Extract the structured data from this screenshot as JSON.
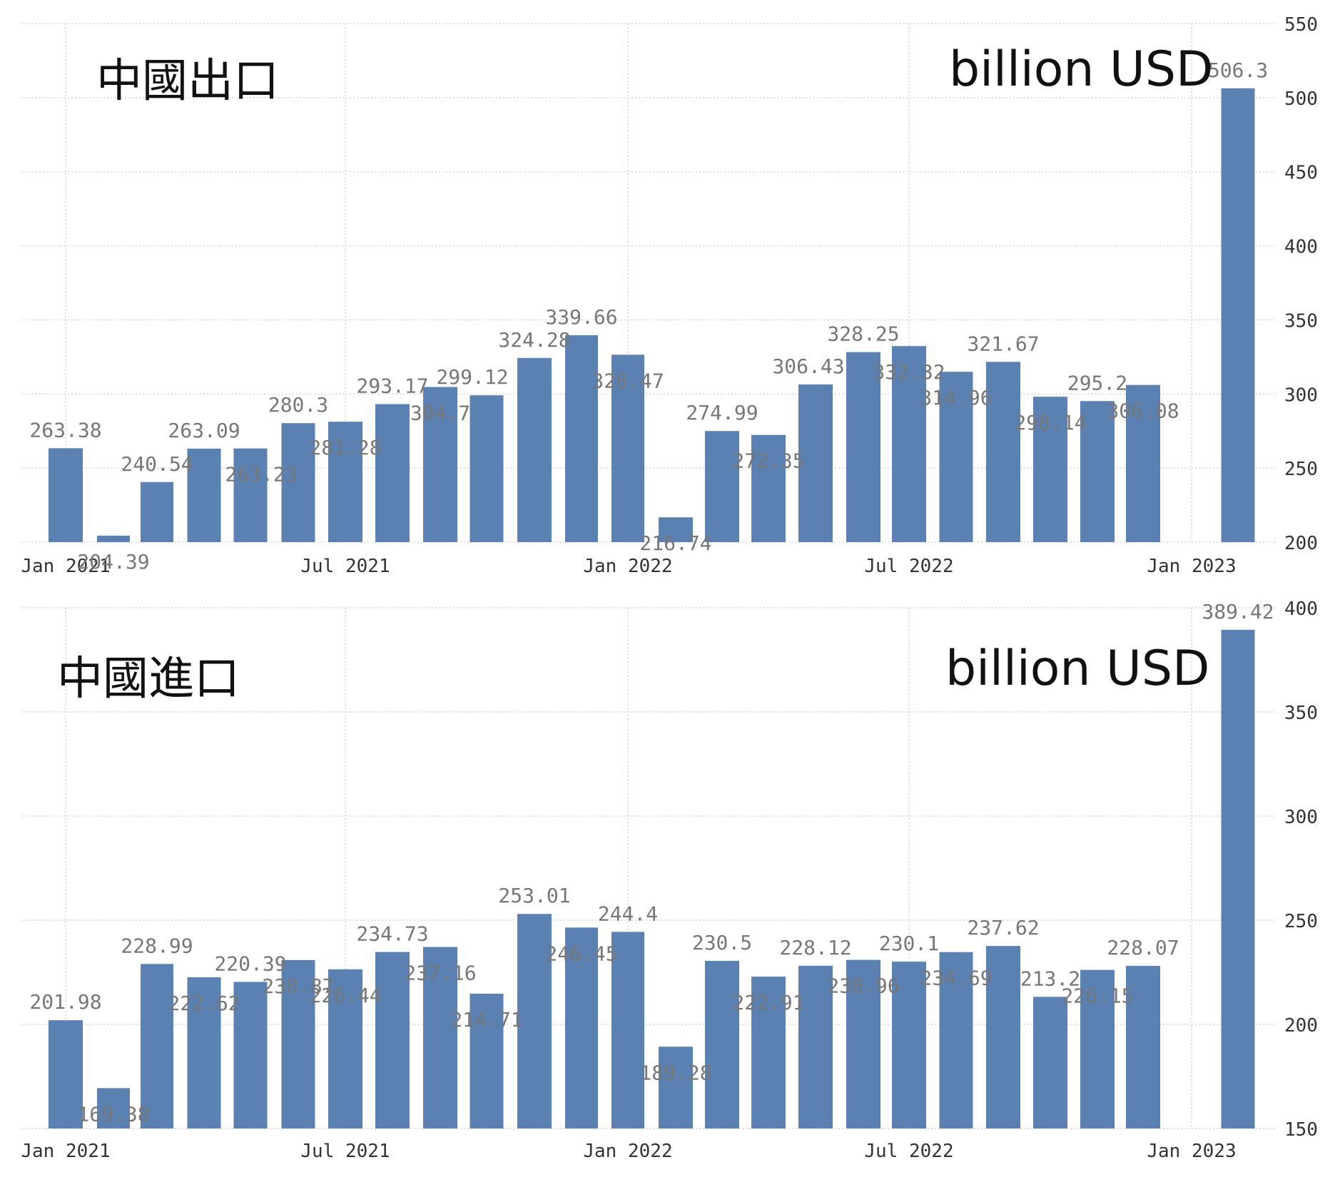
{
  "chart_data": [
    {
      "type": "bar",
      "title": "中國出口",
      "unit_label": "billion USD",
      "xlabel": "",
      "ylabel": "",
      "ylim": [
        200,
        550
      ],
      "yticks": [
        200,
        250,
        300,
        350,
        400,
        450,
        500,
        550
      ],
      "y_axis_side": "right",
      "grid": true,
      "bar_color": "#5b80b2",
      "x_tick_labels": [
        "Jan 2021",
        "Jul 2021",
        "Jan 2022",
        "Jul 2022",
        "Jan 2023"
      ],
      "categories": [
        "2021-01",
        "2021-02",
        "2021-03",
        "2021-04",
        "2021-05",
        "2021-06",
        "2021-07",
        "2021-08",
        "2021-09",
        "2021-10",
        "2021-11",
        "2021-12",
        "2022-01",
        "2022-02",
        "2022-03",
        "2022-04",
        "2022-05",
        "2022-06",
        "2022-07",
        "2022-08",
        "2022-09",
        "2022-10",
        "2022-11",
        "2022-12",
        "2023-01",
        "2023-02"
      ],
      "values": [
        263.38,
        204.39,
        240.54,
        263.09,
        263.23,
        280.3,
        281.28,
        293.17,
        304.7,
        299.12,
        324.28,
        339.66,
        326.47,
        216.74,
        274.99,
        272.35,
        306.43,
        328.25,
        332.32,
        314.96,
        321.67,
        298.14,
        295.2,
        306.08,
        null,
        506.3
      ],
      "data_labels": [
        "263.38",
        "204.39",
        "240.54",
        "263.09",
        "263.23",
        "280.3",
        "281.28",
        "293.17",
        "304.7",
        "299.12",
        "324.28",
        "339.66",
        "326.47",
        "216.74",
        "274.99",
        "272.35",
        "306.43",
        "328.25",
        "332.32",
        "314.96",
        "321.67",
        "298.14",
        "295.2",
        "306.08",
        "",
        "506.3"
      ]
    },
    {
      "type": "bar",
      "title": "中國進口",
      "unit_label": "billion USD",
      "xlabel": "",
      "ylabel": "",
      "ylim": [
        150,
        400
      ],
      "yticks": [
        150,
        200,
        250,
        300,
        350,
        400
      ],
      "y_axis_side": "right",
      "grid": true,
      "bar_color": "#5b80b2",
      "x_tick_labels": [
        "Jan 2021",
        "Jul 2021",
        "Jan 2022",
        "Jul 2022",
        "Jan 2023"
      ],
      "categories": [
        "2021-01",
        "2021-02",
        "2021-03",
        "2021-04",
        "2021-05",
        "2021-06",
        "2021-07",
        "2021-08",
        "2021-09",
        "2021-10",
        "2021-11",
        "2021-12",
        "2022-01",
        "2022-02",
        "2022-03",
        "2022-04",
        "2022-05",
        "2022-06",
        "2022-07",
        "2022-08",
        "2022-09",
        "2022-10",
        "2022-11",
        "2022-12",
        "2023-01",
        "2023-02"
      ],
      "values": [
        201.98,
        169.38,
        228.99,
        222.62,
        220.39,
        230.87,
        226.44,
        234.73,
        237.16,
        214.71,
        253.01,
        246.45,
        244.4,
        189.28,
        230.5,
        222.91,
        228.12,
        230.96,
        230.1,
        234.69,
        237.62,
        213.2,
        226.15,
        228.07,
        null,
        389.42
      ],
      "data_labels": [
        "201.98",
        "169.38",
        "228.99",
        "222.62",
        "220.39",
        "230.87",
        "226.44",
        "234.73",
        "237.16",
        "214.71",
        "253.01",
        "246.45",
        "244.4",
        "189.28",
        "230.5",
        "222.91",
        "228.12",
        "230.96",
        "230.1",
        "234.69",
        "237.62",
        "213.2",
        "226.15",
        "228.07",
        "",
        "389.42"
      ]
    }
  ]
}
